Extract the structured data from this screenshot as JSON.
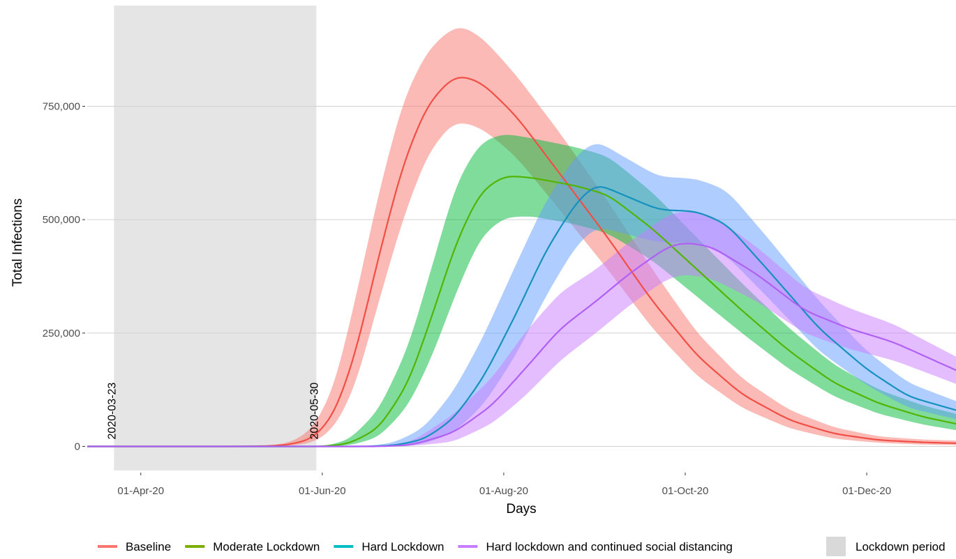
{
  "chart_data": {
    "type": "line",
    "title": "",
    "xlabel": "Days",
    "ylabel": "Total Infections",
    "x_type": "date",
    "xlim": [
      "2020-03-14",
      "2020-12-31"
    ],
    "ylim": [
      -53000,
      972000
    ],
    "grid": "horizontal major",
    "x_ticks": [
      {
        "date": "2020-04-01",
        "label": "01-Apr-20"
      },
      {
        "date": "2020-06-01",
        "label": "01-Jun-20"
      },
      {
        "date": "2020-08-01",
        "label": "01-Aug-20"
      },
      {
        "date": "2020-10-01",
        "label": "01-Oct-20"
      },
      {
        "date": "2020-12-01",
        "label": "01-Dec-20"
      }
    ],
    "y_ticks": [
      {
        "value": 0,
        "label": "0"
      },
      {
        "value": 250000,
        "label": "250,000"
      },
      {
        "value": 500000,
        "label": "500,000"
      },
      {
        "value": 750000,
        "label": "750,000"
      }
    ],
    "shaded_period": {
      "start": "2020-03-23",
      "end": "2020-05-30",
      "color": "#e5e5e5",
      "legend_label": "Lockdown period",
      "start_label": "2020-03-23",
      "end_label": "2020-05-30"
    },
    "series": [
      {
        "name": "Baseline",
        "color": "#f8766d",
        "line_color": "#f14f45",
        "points": [
          {
            "x": "2020-03-14",
            "y": 0,
            "lo": 0,
            "hi": 0
          },
          {
            "x": "2020-05-01",
            "y": 0,
            "lo": 0,
            "hi": 0
          },
          {
            "x": "2020-05-15",
            "y": 1000,
            "lo": 0,
            "hi": 2000
          },
          {
            "x": "2020-05-22",
            "y": 5000,
            "lo": 2000,
            "hi": 10000
          },
          {
            "x": "2020-05-29",
            "y": 18000,
            "lo": 8000,
            "hi": 40000
          },
          {
            "x": "2020-06-05",
            "y": 70000,
            "lo": 40000,
            "hi": 130000
          },
          {
            "x": "2020-06-12",
            "y": 200000,
            "lo": 130000,
            "hi": 320000
          },
          {
            "x": "2020-06-20",
            "y": 420000,
            "lo": 320000,
            "hi": 560000
          },
          {
            "x": "2020-06-28",
            "y": 620000,
            "lo": 500000,
            "hi": 760000
          },
          {
            "x": "2020-07-06",
            "y": 750000,
            "lo": 640000,
            "hi": 870000
          },
          {
            "x": "2020-07-14",
            "y": 810000,
            "lo": 710000,
            "hi": 920000
          },
          {
            "x": "2020-07-18",
            "y": 818000,
            "lo": 716000,
            "hi": 928000
          },
          {
            "x": "2020-07-25",
            "y": 800000,
            "lo": 700000,
            "hi": 900000
          },
          {
            "x": "2020-08-05",
            "y": 730000,
            "lo": 640000,
            "hi": 820000
          },
          {
            "x": "2020-08-20",
            "y": 600000,
            "lo": 520000,
            "hi": 690000
          },
          {
            "x": "2020-09-05",
            "y": 460000,
            "lo": 390000,
            "hi": 540000
          },
          {
            "x": "2020-09-20",
            "y": 320000,
            "lo": 260000,
            "hi": 390000
          },
          {
            "x": "2020-10-05",
            "y": 200000,
            "lo": 155000,
            "hi": 250000
          },
          {
            "x": "2020-10-20",
            "y": 115000,
            "lo": 85000,
            "hi": 150000
          },
          {
            "x": "2020-11-05",
            "y": 58000,
            "lo": 40000,
            "hi": 80000
          },
          {
            "x": "2020-11-20",
            "y": 28000,
            "lo": 17000,
            "hi": 42000
          },
          {
            "x": "2020-12-05",
            "y": 14000,
            "lo": 8000,
            "hi": 22000
          },
          {
            "x": "2020-12-20",
            "y": 9000,
            "lo": 4000,
            "hi": 15000
          },
          {
            "x": "2020-12-31",
            "y": 7000,
            "lo": 3000,
            "hi": 13000
          }
        ]
      },
      {
        "name": "Moderate Lockdown",
        "color": "#00ba38",
        "line_color": "#53b400",
        "points": [
          {
            "x": "2020-03-14",
            "y": 0,
            "lo": 0,
            "hi": 0
          },
          {
            "x": "2020-06-01",
            "y": 0,
            "lo": 0,
            "hi": 0
          },
          {
            "x": "2020-06-10",
            "y": 6000,
            "lo": 2000,
            "hi": 14000
          },
          {
            "x": "2020-06-20",
            "y": 40000,
            "lo": 20000,
            "hi": 80000
          },
          {
            "x": "2020-06-30",
            "y": 140000,
            "lo": 90000,
            "hi": 220000
          },
          {
            "x": "2020-07-08",
            "y": 290000,
            "lo": 200000,
            "hi": 400000
          },
          {
            "x": "2020-07-16",
            "y": 450000,
            "lo": 340000,
            "hi": 580000
          },
          {
            "x": "2020-07-24",
            "y": 560000,
            "lo": 460000,
            "hi": 670000
          },
          {
            "x": "2020-08-01",
            "y": 597000,
            "lo": 505000,
            "hi": 690000
          },
          {
            "x": "2020-08-10",
            "y": 593000,
            "lo": 508000,
            "hi": 680000
          },
          {
            "x": "2020-08-25",
            "y": 575000,
            "lo": 490000,
            "hi": 660000
          },
          {
            "x": "2020-09-05",
            "y": 555000,
            "lo": 470000,
            "hi": 640000
          },
          {
            "x": "2020-09-20",
            "y": 480000,
            "lo": 410000,
            "hi": 560000
          },
          {
            "x": "2020-10-05",
            "y": 390000,
            "lo": 330000,
            "hi": 460000
          },
          {
            "x": "2020-10-20",
            "y": 300000,
            "lo": 250000,
            "hi": 360000
          },
          {
            "x": "2020-11-05",
            "y": 210000,
            "lo": 170000,
            "hi": 260000
          },
          {
            "x": "2020-11-20",
            "y": 140000,
            "lo": 110000,
            "hi": 180000
          },
          {
            "x": "2020-12-05",
            "y": 95000,
            "lo": 72000,
            "hi": 125000
          },
          {
            "x": "2020-12-20",
            "y": 65000,
            "lo": 48000,
            "hi": 90000
          },
          {
            "x": "2020-12-31",
            "y": 50000,
            "lo": 36000,
            "hi": 72000
          }
        ]
      },
      {
        "name": "Hard Lockdown",
        "color": "#00bfc4",
        "line_color": "#1491bf",
        "band_color": "#619cff",
        "points": [
          {
            "x": "2020-03-14",
            "y": 0,
            "lo": 0,
            "hi": 0
          },
          {
            "x": "2020-06-15",
            "y": 0,
            "lo": 0,
            "hi": 0
          },
          {
            "x": "2020-06-25",
            "y": 2000,
            "lo": 500,
            "hi": 8000
          },
          {
            "x": "2020-07-05",
            "y": 15000,
            "lo": 5000,
            "hi": 40000
          },
          {
            "x": "2020-07-15",
            "y": 60000,
            "lo": 30000,
            "hi": 120000
          },
          {
            "x": "2020-07-25",
            "y": 150000,
            "lo": 90000,
            "hi": 240000
          },
          {
            "x": "2020-08-05",
            "y": 290000,
            "lo": 200000,
            "hi": 400000
          },
          {
            "x": "2020-08-15",
            "y": 430000,
            "lo": 330000,
            "hi": 540000
          },
          {
            "x": "2020-08-25",
            "y": 535000,
            "lo": 440000,
            "hi": 640000
          },
          {
            "x": "2020-09-01",
            "y": 580000,
            "lo": 485000,
            "hi": 675000
          },
          {
            "x": "2020-09-10",
            "y": 555000,
            "lo": 470000,
            "hi": 640000
          },
          {
            "x": "2020-09-22",
            "y": 522000,
            "lo": 450000,
            "hi": 595000
          },
          {
            "x": "2020-10-05",
            "y": 518000,
            "lo": 450000,
            "hi": 590000
          },
          {
            "x": "2020-10-15",
            "y": 490000,
            "lo": 420000,
            "hi": 565000
          },
          {
            "x": "2020-10-30",
            "y": 380000,
            "lo": 320000,
            "hi": 450000
          },
          {
            "x": "2020-11-15",
            "y": 260000,
            "lo": 210000,
            "hi": 320000
          },
          {
            "x": "2020-12-01",
            "y": 170000,
            "lo": 135000,
            "hi": 210000
          },
          {
            "x": "2020-12-15",
            "y": 110000,
            "lo": 85000,
            "hi": 140000
          },
          {
            "x": "2020-12-31",
            "y": 80000,
            "lo": 60000,
            "hi": 100000
          }
        ]
      },
      {
        "name": "Hard lockdown and continued social distancing",
        "color": "#c77cff",
        "line_color": "#b060f4",
        "points": [
          {
            "x": "2020-03-14",
            "y": 0,
            "lo": 0,
            "hi": 0
          },
          {
            "x": "2020-06-20",
            "y": 0,
            "lo": 0,
            "hi": 0
          },
          {
            "x": "2020-07-01",
            "y": 3000,
            "lo": 1000,
            "hi": 10000
          },
          {
            "x": "2020-07-15",
            "y": 30000,
            "lo": 10000,
            "hi": 70000
          },
          {
            "x": "2020-07-28",
            "y": 90000,
            "lo": 50000,
            "hi": 150000
          },
          {
            "x": "2020-08-08",
            "y": 170000,
            "lo": 110000,
            "hi": 250000
          },
          {
            "x": "2020-08-20",
            "y": 260000,
            "lo": 190000,
            "hi": 340000
          },
          {
            "x": "2020-09-01",
            "y": 320000,
            "lo": 250000,
            "hi": 390000
          },
          {
            "x": "2020-09-12",
            "y": 380000,
            "lo": 310000,
            "hi": 450000
          },
          {
            "x": "2020-09-25",
            "y": 440000,
            "lo": 370000,
            "hi": 510000
          },
          {
            "x": "2020-10-01",
            "y": 450000,
            "lo": 380000,
            "hi": 520000
          },
          {
            "x": "2020-10-10",
            "y": 440000,
            "lo": 370000,
            "hi": 510000
          },
          {
            "x": "2020-10-25",
            "y": 380000,
            "lo": 320000,
            "hi": 440000
          },
          {
            "x": "2020-11-10",
            "y": 300000,
            "lo": 250000,
            "hi": 350000
          },
          {
            "x": "2020-11-25",
            "y": 260000,
            "lo": 215000,
            "hi": 305000
          },
          {
            "x": "2020-12-10",
            "y": 230000,
            "lo": 190000,
            "hi": 270000
          },
          {
            "x": "2020-12-31",
            "y": 168000,
            "lo": 138000,
            "hi": 198000
          }
        ]
      }
    ],
    "legend": {
      "position": "bottom",
      "items": [
        {
          "label": "Baseline",
          "color": "#f8766d"
        },
        {
          "label": "Moderate Lockdown",
          "color": "#7cae00"
        },
        {
          "label": "Hard Lockdown",
          "color": "#00bfc4"
        },
        {
          "label": "Hard lockdown and continued social distancing",
          "color": "#c77cff"
        }
      ],
      "period_label": "Lockdown period",
      "period_color": "#d9d9d9"
    }
  }
}
